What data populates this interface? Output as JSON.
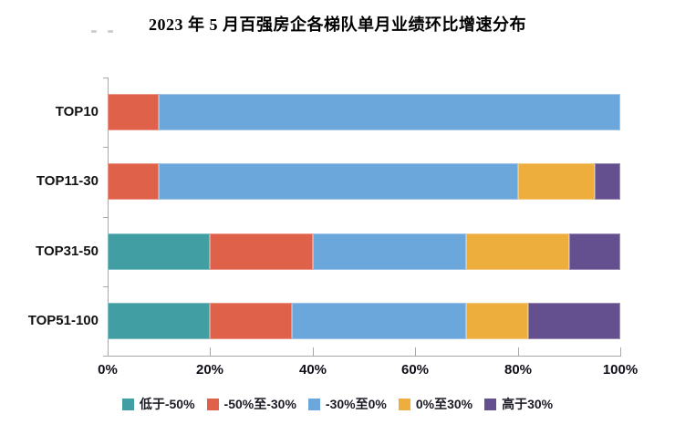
{
  "chart_data": {
    "type": "bar",
    "orientation": "horizontal",
    "stacked": true,
    "title": "2023 年 5 月百强房企各梯队单月业绩环比增速分布",
    "categories": [
      "TOP10",
      "TOP11-30",
      "TOP31-50",
      "TOP51-100"
    ],
    "series": [
      {
        "name": "低于-50%",
        "color": "#419FA4",
        "values": [
          0,
          0,
          20,
          20
        ]
      },
      {
        "name": "-50%至-30%",
        "color": "#E0614A",
        "values": [
          10,
          10,
          20,
          16
        ]
      },
      {
        "name": "-30%至0%",
        "color": "#6BA7DB",
        "values": [
          90,
          70,
          30,
          34
        ]
      },
      {
        "name": "0%至30%",
        "color": "#EDAE3E",
        "values": [
          0,
          15,
          20,
          12
        ]
      },
      {
        "name": "高于30%",
        "color": "#64508F",
        "values": [
          0,
          5,
          10,
          18
        ]
      }
    ],
    "x_ticks": [
      "0%",
      "20%",
      "40%",
      "60%",
      "80%",
      "100%"
    ],
    "xlim": [
      0,
      100
    ],
    "unit": "%",
    "legend_position": "bottom",
    "grid": false,
    "axis_color": "#a9a9a9"
  }
}
